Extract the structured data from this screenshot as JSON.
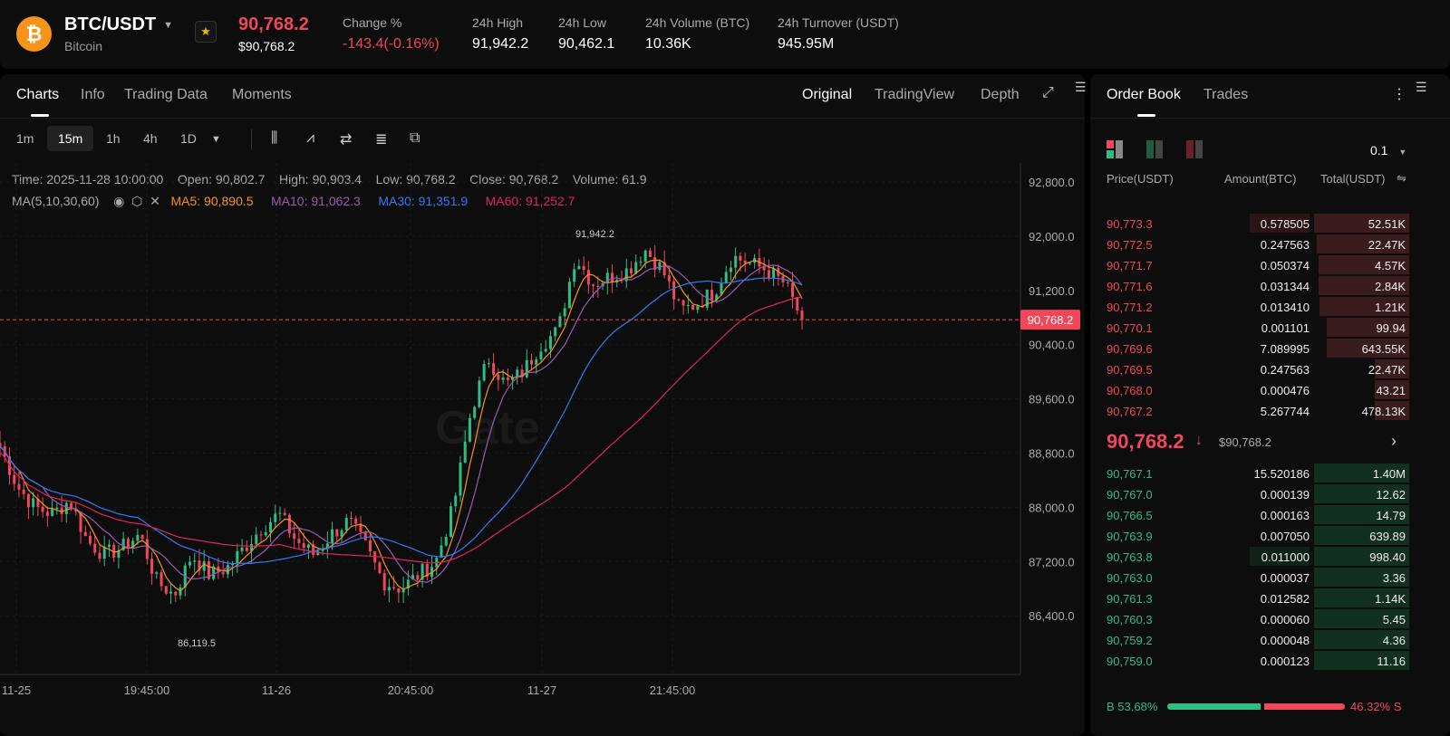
{
  "header": {
    "symbol": "BTC/USDT",
    "name": "Bitcoin",
    "last_price": "90,768.2",
    "last_price_usd": "$90,768.2",
    "stats": [
      {
        "label": "Change %",
        "value": "-143.4(-0.16%)",
        "color": "#f0475a"
      },
      {
        "label": "24h High",
        "value": "91,942.2"
      },
      {
        "label": "24h Low",
        "value": "90,462.1"
      },
      {
        "label": "24h Volume (BTC)",
        "value": "10.36K"
      },
      {
        "label": "24h Turnover (USDT)",
        "value": "945.95M"
      }
    ]
  },
  "chart_tabs": [
    "Charts",
    "Info",
    "Trading Data",
    "Moments"
  ],
  "view_tabs": [
    "Original",
    "TradingView",
    "Depth"
  ],
  "timeframes": [
    "1m",
    "15m",
    "1h",
    "4h",
    "1D"
  ],
  "active_timeframe": "15m",
  "ohlc": {
    "time": "Time: 2025-11-28 10:00:00",
    "open": "Open: 90,802.7",
    "high": "High: 90,903.4",
    "low": "Low: 90,768.2",
    "close": "Close: 90,768.2",
    "volume": "Volume: 61.9"
  },
  "ma": {
    "label": "MA(5,10,30,60)",
    "ma5": "MA5: 90,890.5",
    "ma10": "MA10: 91,062.3",
    "ma30": "MA30: 91,351.9",
    "ma60": "MA60: 91,252.7"
  },
  "colors": {
    "up": "#2ebd85",
    "down": "#f0475a",
    "ma5": "#f7931a",
    "ma10": "#9b59b6",
    "ma30": "#2f7bf6",
    "ma60": "#e0245e"
  },
  "chart_data": {
    "type": "candlestick",
    "y_ticks": [
      "92,800.0",
      "92,000.0",
      "91,200.0",
      "90,400.0",
      "89,600.0",
      "88,800.0",
      "88,000.0",
      "87,200.0",
      "86,400.0"
    ],
    "ylim": [
      86400,
      92800
    ],
    "x_ticks": [
      "11-25",
      "19:45:00",
      "11-26",
      "20:45:00",
      "11-27",
      "21:45:00"
    ],
    "current_price_label": "90,768.2",
    "high_label": "91,942.2",
    "low_label": "86,119.5",
    "approx_close_path": [
      88900,
      88300,
      88000,
      87900,
      88100,
      87500,
      87300,
      87400,
      87600,
      86900,
      86700,
      87300,
      87000,
      87100,
      87400,
      87700,
      87900,
      87500,
      87300,
      87600,
      87800,
      87400,
      86900,
      86800,
      87000,
      87200,
      88000,
      89400,
      90200,
      89800,
      90000,
      90400,
      90600,
      91700,
      91300,
      91400,
      91500,
      91800,
      91500,
      90900,
      91000,
      91200,
      91700,
      91600,
      91500,
      91300,
      90768
    ]
  },
  "order_book": {
    "tabs": [
      "Order Book",
      "Trades"
    ],
    "precision": "0.1",
    "headers": [
      "Price(USDT)",
      "Amount(BTC)",
      "Total(USDT)"
    ],
    "asks": [
      [
        "90,773.3",
        "0.578505",
        "52.51K",
        0.55,
        1.0
      ],
      [
        "90,772.5",
        "0.247563",
        "22.47K",
        0,
        0.97
      ],
      [
        "90,771.7",
        "0.050374",
        "4.57K",
        0,
        0.95
      ],
      [
        "90,771.6",
        "0.031344",
        "2.84K",
        0,
        0.95
      ],
      [
        "90,771.2",
        "0.013410",
        "1.21K",
        0,
        0.94
      ],
      [
        "90,770.1",
        "0.001101",
        "99.94",
        0,
        0.87
      ],
      [
        "90,769.6",
        "7.089995",
        "643.55K",
        0,
        0.87
      ],
      [
        "90,769.5",
        "0.247563",
        "22.47K",
        0,
        0.36
      ],
      [
        "90,768.0",
        "0.000476",
        "43.21",
        0,
        0.36
      ],
      [
        "90,767.2",
        "5.267744",
        "478.13K",
        0,
        0.36
      ]
    ],
    "mid_price": "90,768.2",
    "mid_usd": "$90,768.2",
    "bids": [
      [
        "90,767.1",
        "15.520186",
        "1.40M",
        0,
        1.0
      ],
      [
        "90,767.0",
        "0.000139",
        "12.62",
        0,
        1.0
      ],
      [
        "90,766.5",
        "0.000163",
        "14.79",
        0,
        1.0
      ],
      [
        "90,763.9",
        "0.007050",
        "639.89",
        0,
        1.0
      ],
      [
        "90,763.8",
        "0.011000",
        "998.40",
        0.55,
        1.0
      ],
      [
        "90,763.0",
        "0.000037",
        "3.36",
        0,
        1.0
      ],
      [
        "90,761.3",
        "0.012582",
        "1.14K",
        0,
        1.0
      ],
      [
        "90,760.3",
        "0.000060",
        "5.45",
        0,
        1.0
      ],
      [
        "90,759.2",
        "0.000048",
        "4.36",
        0,
        1.0
      ],
      [
        "90,759.0",
        "0.000123",
        "11.16",
        0,
        1.0
      ]
    ],
    "buy_ratio": "B 53.68%",
    "sell_ratio": "46.32% S",
    "buy_fraction": 0.5368
  }
}
